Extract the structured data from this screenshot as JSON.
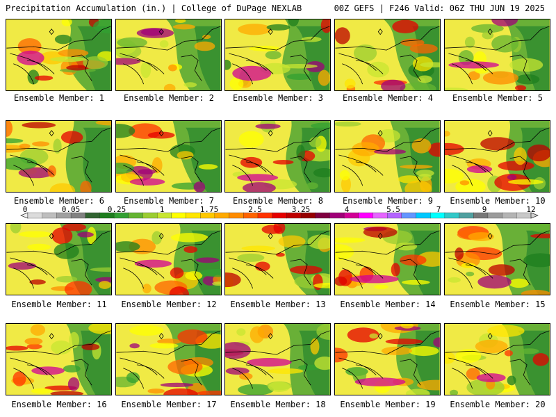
{
  "header": {
    "left": "Precipitation Accumulation (in.) | College of DuPage NEXLAB",
    "right": "00Z GEFS | F246 Valid: 06Z THU JUN 19 2025"
  },
  "legend": {
    "ticks": [
      "0",
      "0.05",
      "0.25",
      "1",
      "1.75",
      "2.5",
      "3.25",
      "4",
      "5.5",
      "7",
      "9",
      "12"
    ],
    "colors": [
      "#dcdcdc",
      "#bebebe",
      "#a0a0a0",
      "#828282",
      "#326432",
      "#1e7d1e",
      "#32a032",
      "#64b432",
      "#9bcd32",
      "#c8e632",
      "#ffff00",
      "#ffe600",
      "#ffc800",
      "#ffaa00",
      "#ff8c00",
      "#ff6400",
      "#ff3200",
      "#e60000",
      "#be0000",
      "#960000",
      "#800040",
      "#a00078",
      "#d20096",
      "#ff00ff",
      "#e664ff",
      "#b464ff",
      "#6496ff",
      "#00c8ff",
      "#00ffff",
      "#32c8c8",
      "#50a0a0",
      "#787878",
      "#9b9b9b",
      "#b4b4b4",
      "#c8c8c8"
    ]
  },
  "panels": [
    {
      "caption": "Ensemble Member: 1"
    },
    {
      "caption": "Ensemble Member: 2"
    },
    {
      "caption": "Ensemble Member: 3"
    },
    {
      "caption": "Ensemble Member: 4"
    },
    {
      "caption": "Ensemble Member: 5"
    },
    {
      "caption": "Ensemble Member: 6"
    },
    {
      "caption": "Ensemble Member: 7"
    },
    {
      "caption": "Ensemble Member: 8"
    },
    {
      "caption": "Ensemble Member: 9"
    },
    {
      "caption": "Ensemble Member: 10"
    },
    {
      "caption": "Ensemble Member: 11"
    },
    {
      "caption": "Ensemble Member: 12"
    },
    {
      "caption": "Ensemble Member: 13"
    },
    {
      "caption": "Ensemble Member: 14"
    },
    {
      "caption": "Ensemble Member: 15"
    },
    {
      "caption": "Ensemble Member: 16"
    },
    {
      "caption": "Ensemble Member: 17"
    },
    {
      "caption": "Ensemble Member: 18"
    },
    {
      "caption": "Ensemble Member: 19"
    },
    {
      "caption": "Ensemble Member: 20"
    }
  ]
}
